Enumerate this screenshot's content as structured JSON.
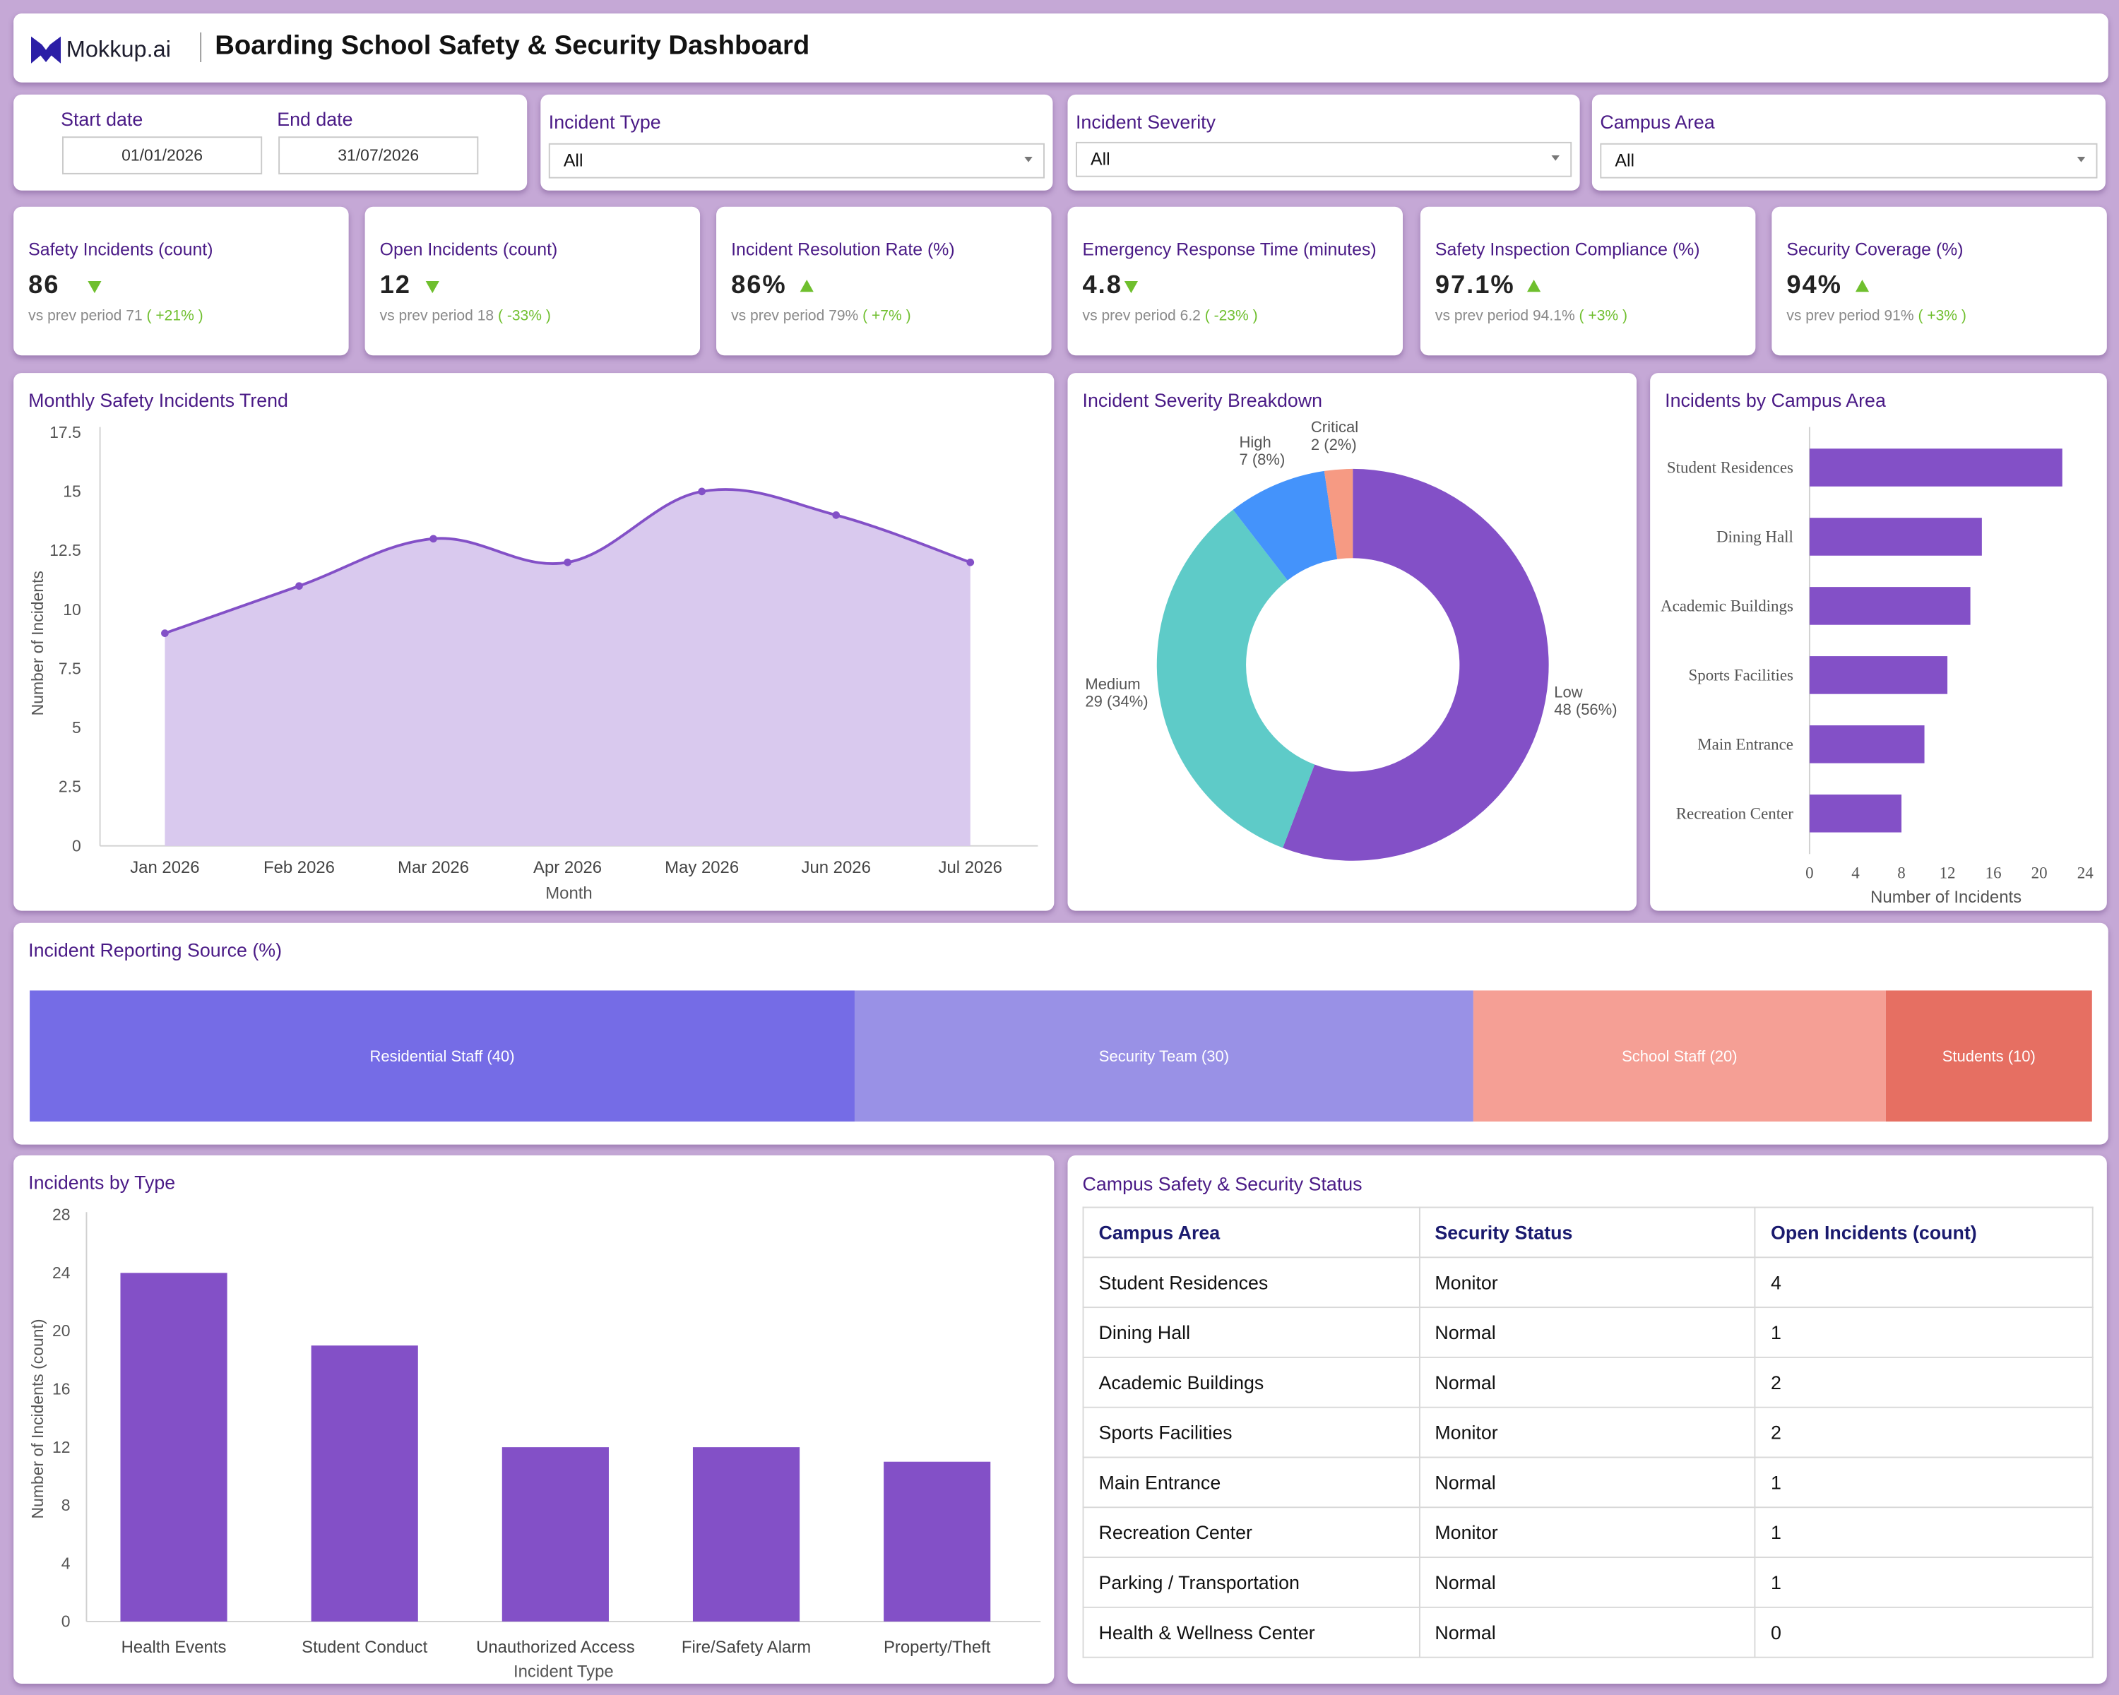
{
  "header": {
    "logo_text": "Mokkup.ai",
    "title": "Boarding School Safety & Security Dashboard"
  },
  "filters": {
    "start_label": "Start date",
    "end_label": "End date",
    "start_value": "01/01/2026",
    "end_value": "31/07/2026",
    "incident_type_label": "Incident Type",
    "incident_type_value": "All",
    "severity_label": "Incident Severity",
    "severity_value": "All",
    "campus_label": "Campus Area",
    "campus_value": "All"
  },
  "kpis": [
    {
      "title": "Safety Incidents (count)",
      "value": "86",
      "trend": "down",
      "prev_label": "vs prev period",
      "prev_value": "71",
      "change": "( +21% )"
    },
    {
      "title": "Open Incidents (count)",
      "value": "12",
      "trend": "down",
      "prev_label": "vs prev period",
      "prev_value": "18",
      "change": "( -33% )"
    },
    {
      "title": "Incident Resolution Rate (%)",
      "value": "86%",
      "trend": "up",
      "prev_label": "vs prev period",
      "prev_value": "79%",
      "change": "( +7% )"
    },
    {
      "title": "Emergency Response Time (minutes)",
      "value": "4.8",
      "trend": "down",
      "prev_label": "vs prev period",
      "prev_value": "6.2",
      "change": "( -23% )"
    },
    {
      "title": "Safety Inspection Compliance (%)",
      "value": "97.1%",
      "trend": "up",
      "prev_label": "vs prev period",
      "prev_value": "94.1%",
      "change": "( +3% )"
    },
    {
      "title": "Security Coverage (%)",
      "value": "94%",
      "trend": "up",
      "prev_label": "vs prev period",
      "prev_value": "91%",
      "change": "( +3% )"
    }
  ],
  "colors": {
    "accent": "#4a1a86",
    "purple": "#8350c7",
    "area_fill": "#d9c9ee",
    "teal": "#5ecbc8",
    "blue": "#4493fb",
    "salmon": "#f69a83",
    "positive": "#6fbf2e"
  },
  "chart_data": [
    {
      "type": "area",
      "title": "Monthly Safety Incidents Trend",
      "xlabel": "Month",
      "ylabel": "Number of Incidents",
      "x": [
        "Jan 2026",
        "Feb 2026",
        "Mar 2026",
        "Apr 2026",
        "May 2026",
        "Jun 2026",
        "Jul 2026"
      ],
      "values": [
        9,
        11,
        13,
        12,
        15,
        14,
        12
      ],
      "ylim": [
        0,
        17.5
      ],
      "yticks": [
        "0",
        "2.5",
        "5",
        "7.5",
        "10",
        "12.5",
        "15",
        "17.5"
      ]
    },
    {
      "type": "pie",
      "title": "Incident Severity Breakdown",
      "slices": [
        {
          "name": "Low",
          "value": 48,
          "label": "48 (56%)",
          "color": "#8350c7"
        },
        {
          "name": "Medium",
          "value": 29,
          "label": "29 (34%)",
          "color": "#5ecbc8"
        },
        {
          "name": "High",
          "value": 7,
          "label": "7 (8%)",
          "color": "#4493fb"
        },
        {
          "name": "Critical",
          "value": 2,
          "label": "2 (2%)",
          "color": "#f69a83"
        }
      ]
    },
    {
      "type": "bar",
      "orientation": "horizontal",
      "title": "Incidents by Campus Area",
      "xlabel": "Number of Incidents",
      "categories": [
        "Student Residences",
        "Dining Hall",
        "Academic Buildings",
        "Sports Facilities",
        "Main Entrance",
        "Recreation Center"
      ],
      "values": [
        22,
        15,
        14,
        12,
        10,
        8
      ],
      "xlim": [
        0,
        24
      ],
      "xticks": [
        "0",
        "4",
        "8",
        "12",
        "16",
        "20",
        "24"
      ]
    },
    {
      "type": "bar",
      "orientation": "stacked-100",
      "title": "Incident Reporting Source (%)",
      "segments": [
        {
          "name": "Residential Staff",
          "value": 40,
          "label": "Residential Staff (40)",
          "color": "#756ce6"
        },
        {
          "name": "Security Team",
          "value": 30,
          "label": "Security Team (30)",
          "color": "#9991e6"
        },
        {
          "name": "School Staff",
          "value": 20,
          "label": "School Staff (20)",
          "color": "#f59f95"
        },
        {
          "name": "Students",
          "value": 10,
          "label": "Students (10)",
          "color": "#e66f62"
        }
      ]
    },
    {
      "type": "bar",
      "title": "Incidents by Type",
      "xlabel": "Incident Type",
      "ylabel": "Number of Incidents (count)",
      "categories": [
        "Health Events",
        "Student Conduct",
        "Unauthorized Access",
        "Fire/Safety Alarm",
        "Property/Theft"
      ],
      "values": [
        24,
        19,
        12,
        12,
        11
      ],
      "ylim": [
        0,
        28
      ],
      "yticks": [
        "0",
        "4",
        "8",
        "12",
        "16",
        "20",
        "24",
        "28"
      ]
    },
    {
      "type": "table",
      "title": "Campus Safety & Security Status",
      "columns": [
        "Campus Area",
        "Security Status",
        "Open Incidents (count)"
      ],
      "rows": [
        [
          "Student Residences",
          "Monitor",
          "4"
        ],
        [
          "Dining Hall",
          "Normal",
          "1"
        ],
        [
          "Academic Buildings",
          "Normal",
          "2"
        ],
        [
          "Sports Facilities",
          "Monitor",
          "2"
        ],
        [
          "Main Entrance",
          "Normal",
          "1"
        ],
        [
          "Recreation Center",
          "Monitor",
          "1"
        ],
        [
          "Parking / Transportation",
          "Normal",
          "1"
        ],
        [
          "Health & Wellness Center",
          "Normal",
          "0"
        ]
      ]
    }
  ]
}
